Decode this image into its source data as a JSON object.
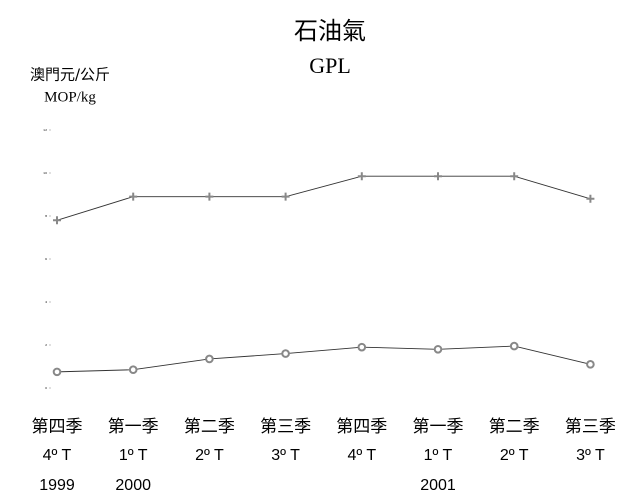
{
  "chart_data": {
    "type": "line",
    "title": "石油氣",
    "subtitle": "GPL",
    "y_label": "澳門元/公斤",
    "y_label_sub": "MOP/kg",
    "categories": [
      "第四季",
      "第一季",
      "第二季",
      "第三季",
      "第四季",
      "第一季",
      "第二季",
      "第三季"
    ],
    "categories_sub": [
      "4º T",
      "1º T",
      "2º T",
      "3º T",
      "4º T",
      "1º T",
      "2º T",
      "3º T"
    ],
    "years": [
      "1999",
      "2000",
      null,
      null,
      null,
      "2001",
      null,
      null
    ],
    "ylim": [
      0,
      12
    ],
    "yticks": [
      0,
      2,
      4,
      6,
      8,
      10,
      12
    ],
    "series": [
      {
        "color": "#888888",
        "marker": "plus",
        "values": [
          7.8,
          8.9,
          8.9,
          8.9,
          9.85,
          9.85,
          9.85,
          8.8
        ]
      },
      {
        "color": "#888888",
        "marker": "circle",
        "values": [
          0.75,
          0.85,
          1.35,
          1.6,
          1.9,
          1.8,
          1.95,
          1.1
        ]
      }
    ]
  }
}
